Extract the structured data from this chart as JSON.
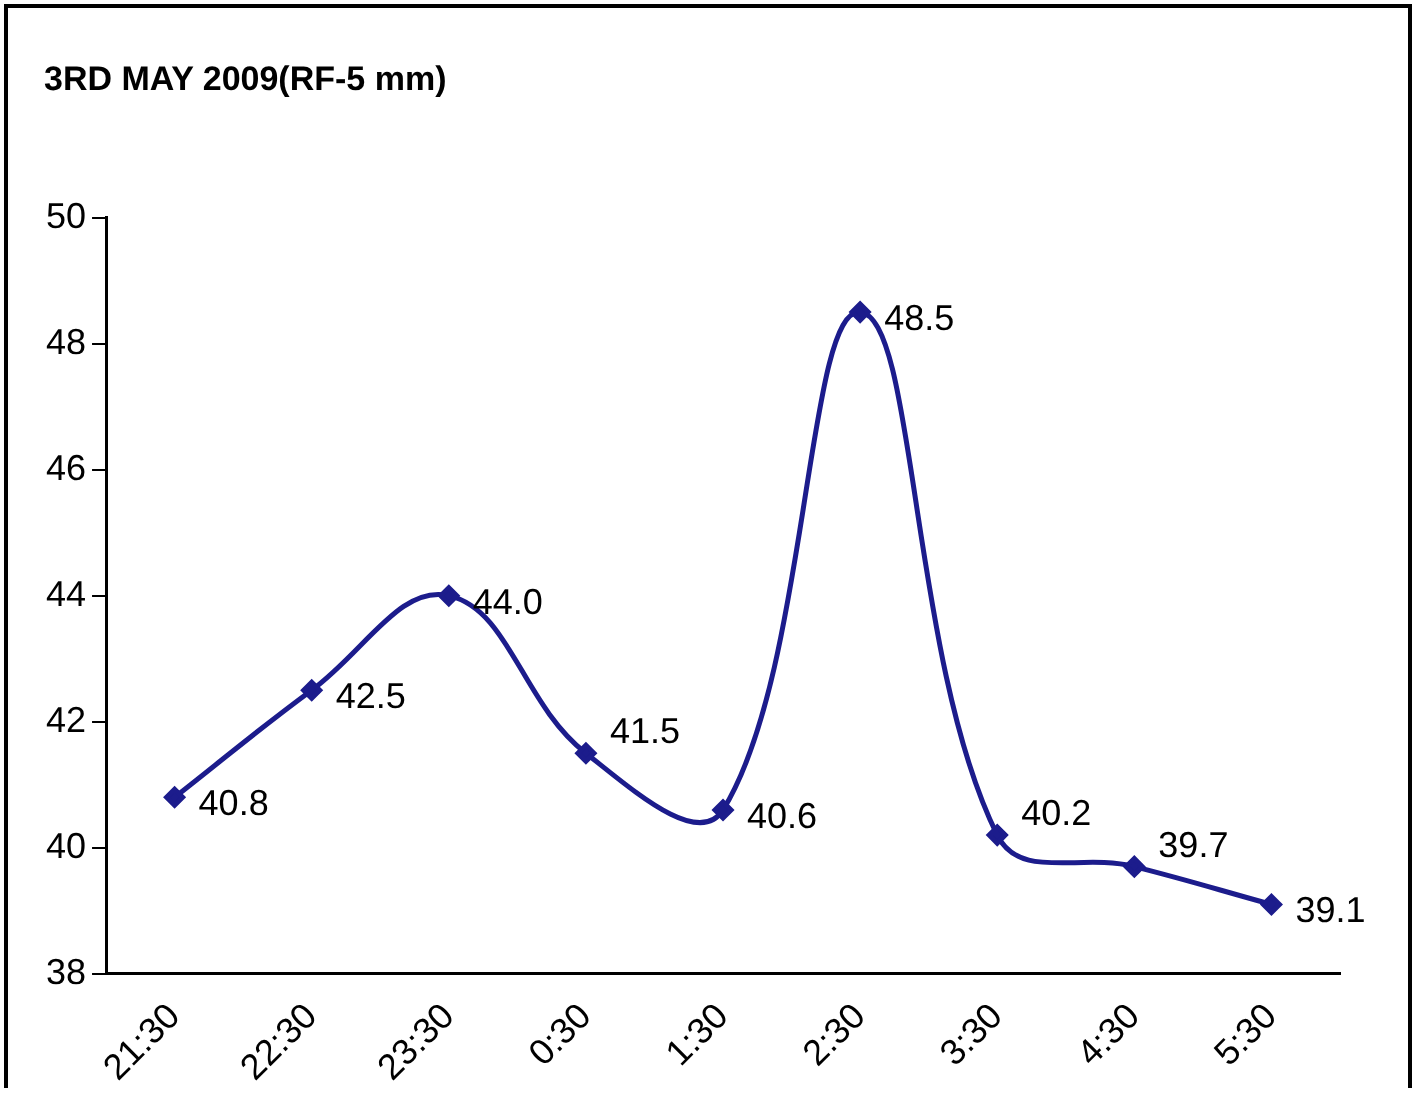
{
  "chart_data": {
    "type": "line",
    "title": "3RD MAY 2009(RF-5 mm)",
    "categories": [
      "21:30",
      "22:30",
      "23:30",
      "0:30",
      "1:30",
      "2:30",
      "3:30",
      "4:30",
      "5:30"
    ],
    "series": [
      {
        "color": "#1c1c8c",
        "values": [
          40.8,
          42.5,
          44.0,
          41.5,
          40.6,
          48.5,
          40.2,
          39.7,
          39.1
        ],
        "value_labels": [
          "40.8",
          "42.5",
          "44.0",
          "41.5",
          "40.6",
          "48.5",
          "40.2",
          "39.7",
          "39.1"
        ]
      }
    ],
    "ylim": [
      38,
      50
    ],
    "yticks": [
      38,
      40,
      42,
      44,
      46,
      48,
      50
    ],
    "grid": false,
    "legend": false,
    "marker": "diamond",
    "line_style": "solid"
  }
}
